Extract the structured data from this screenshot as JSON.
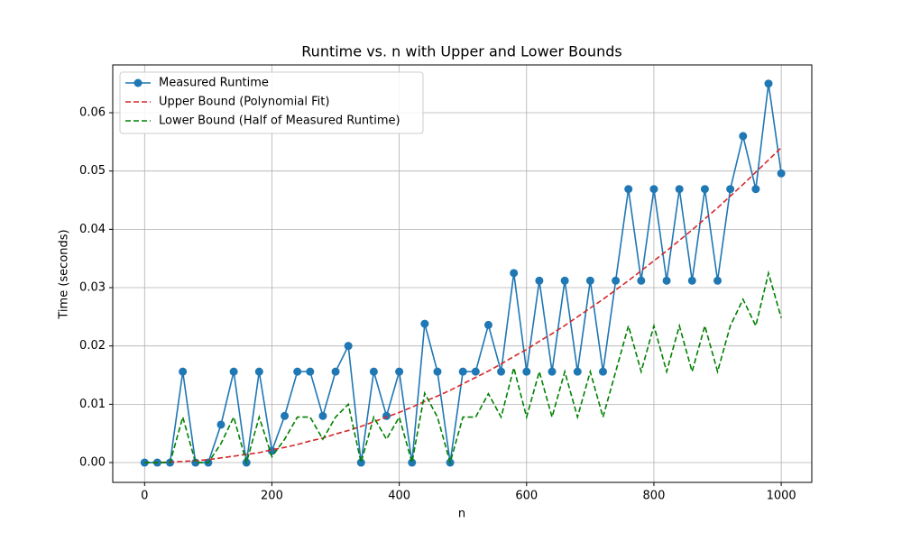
{
  "chart_data": {
    "type": "line",
    "title": "Runtime vs. n with Upper and Lower Bounds",
    "x_label": "n",
    "y_label": "Time (seconds)",
    "x": [
      0,
      20,
      40,
      60,
      80,
      100,
      120,
      140,
      160,
      180,
      200,
      220,
      240,
      260,
      280,
      300,
      320,
      340,
      360,
      380,
      400,
      420,
      440,
      460,
      480,
      500,
      520,
      540,
      560,
      580,
      600,
      620,
      640,
      660,
      680,
      700,
      720,
      740,
      760,
      780,
      800,
      820,
      840,
      860,
      880,
      900,
      920,
      940,
      960,
      980,
      1000
    ],
    "series": [
      {
        "name": "Measured Runtime",
        "color": "#1f77b4",
        "linestyle": "solid",
        "marker": "o",
        "values": [
          0,
          0,
          0,
          0.0156,
          0,
          0,
          0.0065,
          0.0156,
          0,
          0.0156,
          0.002,
          0.008,
          0.0156,
          0.0156,
          0.008,
          0.0156,
          0.02,
          0,
          0.0156,
          0.008,
          0.0156,
          0,
          0.0238,
          0.0156,
          0,
          0.0156,
          0.0156,
          0.0236,
          0.0156,
          0.0325,
          0.0156,
          0.0312,
          0.0156,
          0.0312,
          0.0156,
          0.0312,
          0.0156,
          0.0312,
          0.0469,
          0.0312,
          0.0469,
          0.0312,
          0.0469,
          0.0312,
          0.0469,
          0.0312,
          0.0469,
          0.056,
          0.0469,
          0.065,
          0.0496
        ]
      },
      {
        "name": "Upper Bound (Polynomial Fit)",
        "color": "#d62728",
        "linestyle": "dashed",
        "marker": "none",
        "values": [
          0,
          2e-05,
          0.0001,
          0.0002,
          0.0003,
          0.0005,
          0.0008,
          0.0011,
          0.0014,
          0.0017,
          0.0022,
          0.0026,
          0.0031,
          0.0037,
          0.0042,
          0.0049,
          0.0055,
          0.0062,
          0.007,
          0.0078,
          0.0086,
          0.0095,
          0.0105,
          0.0114,
          0.0124,
          0.0135,
          0.0146,
          0.0157,
          0.0169,
          0.0182,
          0.0194,
          0.0208,
          0.0221,
          0.0235,
          0.025,
          0.0265,
          0.028,
          0.0296,
          0.0312,
          0.0329,
          0.0346,
          0.0363,
          0.0381,
          0.0399,
          0.0418,
          0.0437,
          0.0457,
          0.0477,
          0.0498,
          0.0519,
          0.054
        ]
      },
      {
        "name": "Lower Bound (Half of Measured Runtime)",
        "color": "#008000",
        "linestyle": "dashed",
        "marker": "none",
        "values": [
          0,
          0,
          0,
          0.0078,
          0,
          0,
          0.00325,
          0.0078,
          0,
          0.0078,
          0.001,
          0.004,
          0.0078,
          0.0078,
          0.004,
          0.0078,
          0.01,
          0,
          0.0078,
          0.004,
          0.0078,
          0,
          0.0119,
          0.0078,
          0,
          0.0078,
          0.0078,
          0.0118,
          0.0078,
          0.01625,
          0.0078,
          0.0156,
          0.0078,
          0.0156,
          0.0078,
          0.0156,
          0.0078,
          0.0156,
          0.02345,
          0.0156,
          0.02345,
          0.0156,
          0.02345,
          0.0156,
          0.02345,
          0.0156,
          0.02345,
          0.028,
          0.02345,
          0.0325,
          0.0248
        ]
      }
    ],
    "xlim": [
      -50,
      1048
    ],
    "ylim": [
      -0.0034,
      0.0682
    ],
    "xticks": [
      0,
      200,
      400,
      600,
      800,
      1000
    ],
    "yticks": [
      {
        "value": 0,
        "label": "0.00"
      },
      {
        "value": 0.01,
        "label": "0.01"
      },
      {
        "value": 0.02,
        "label": "0.02"
      },
      {
        "value": 0.03,
        "label": "0.03"
      },
      {
        "value": 0.04,
        "label": "0.04"
      },
      {
        "value": 0.05,
        "label": "0.05"
      },
      {
        "value": 0.06,
        "label": "0.06"
      }
    ],
    "grid": true,
    "legend": "upper left"
  }
}
